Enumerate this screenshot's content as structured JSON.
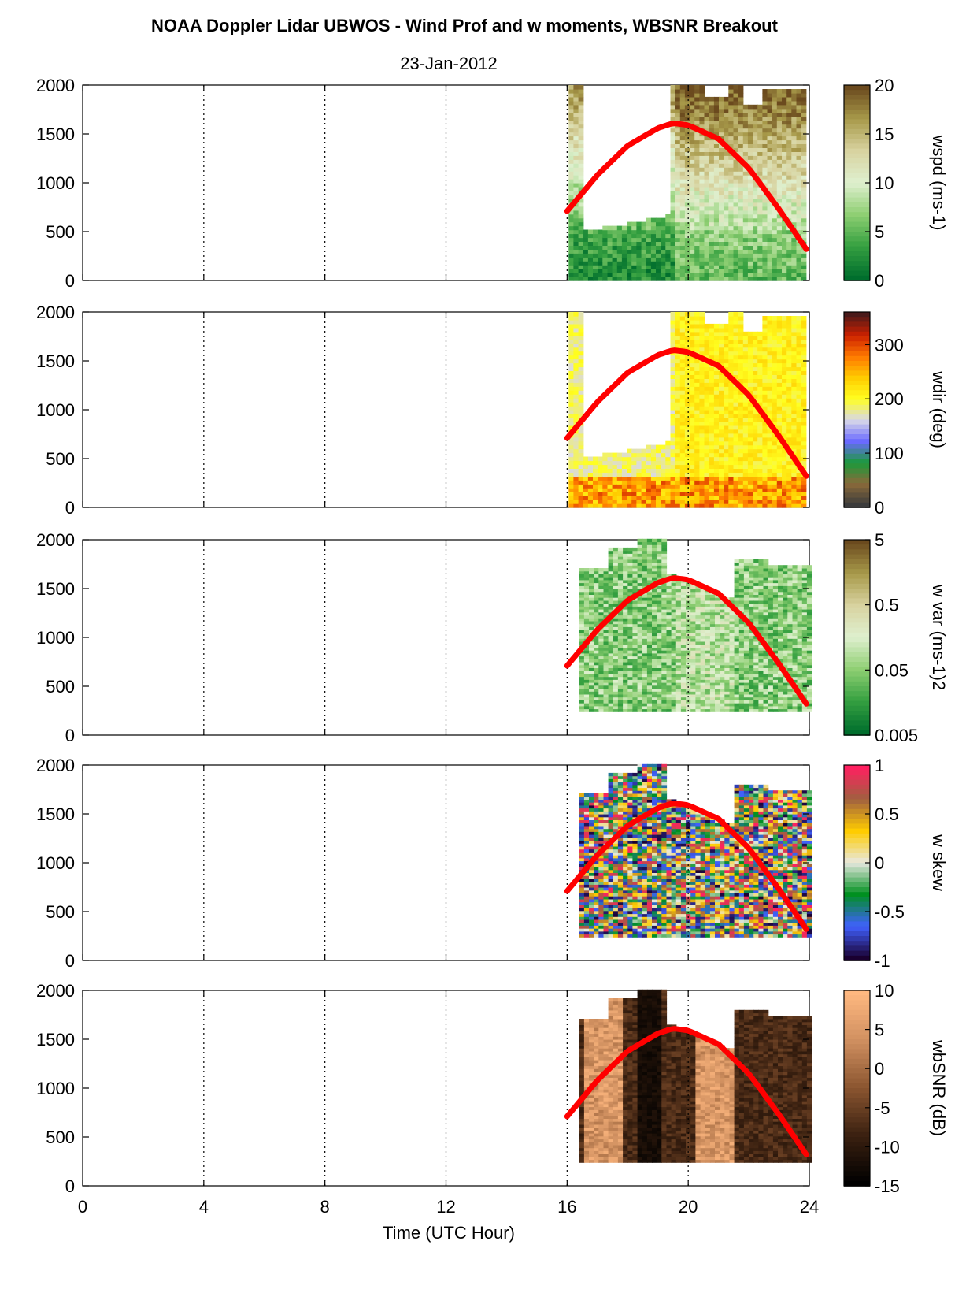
{
  "chart_data": {
    "type": "heatmap",
    "title": "NOAA Doppler Lidar UBWOS - Wind Prof and w moments, WBSNR Breakout",
    "subtitle": "23-Jan-2012",
    "xlabel": "Time (UTC Hour)",
    "xlim": [
      0,
      24
    ],
    "xticks": [
      0,
      4,
      8,
      12,
      16,
      20,
      24
    ],
    "x_gridlines": [
      4,
      8,
      12,
      16,
      20
    ],
    "ylim": [
      0,
      2000
    ],
    "yticks": [
      0,
      500,
      1000,
      1500,
      2000
    ],
    "data_extent_hours": [
      16,
      24
    ],
    "overlay_curve": {
      "color": "#ff0000",
      "x": [
        16,
        17,
        18,
        19,
        19.5,
        20,
        21,
        22,
        23,
        23.9
      ],
      "y": [
        710,
        1080,
        1380,
        1560,
        1610,
        1590,
        1450,
        1150,
        730,
        320
      ]
    },
    "panels": [
      {
        "name": "wspd",
        "colorbar_label": "wspd (ms-1)",
        "colorbar_ticks": [
          "20",
          "15",
          "10",
          "5",
          "0"
        ],
        "colorbar_range": [
          0,
          20
        ],
        "colormap": [
          "#006e2d",
          "#35a040",
          "#8fcf73",
          "#dff0cf",
          "#d8d3a0",
          "#a89a4a",
          "#6b4a1e"
        ]
      },
      {
        "name": "wdir",
        "colorbar_label": "wdir (deg)",
        "colorbar_ticks": [
          "300",
          "200",
          "100",
          "0"
        ],
        "colorbar_range": [
          0,
          360
        ],
        "colormap": [
          "#3c3c3c",
          "#8a6a3a",
          "#1a9a3a",
          "#6a6aff",
          "#d8d8e8",
          "#ffff20",
          "#ffcc00",
          "#ff7a00",
          "#cc2000",
          "#4a1a1a"
        ]
      },
      {
        "name": "w var",
        "colorbar_label": "w var (ms-1)2",
        "colorbar_ticks": [
          "5",
          "0.5",
          "0.05",
          "0.005"
        ],
        "colorbar_range": [
          0.005,
          5
        ],
        "colormap": [
          "#006e2d",
          "#35a040",
          "#8fcf73",
          "#dff0cf",
          "#d8d3a0",
          "#a89a4a",
          "#6b4a1e"
        ]
      },
      {
        "name": "w skew",
        "colorbar_label": "w skew",
        "colorbar_ticks": [
          "1",
          "0.5",
          "0",
          "-0.5",
          "-1"
        ],
        "colorbar_range": [
          -1,
          1
        ],
        "colormap": [
          "#1a0030",
          "#4060ff",
          "#009020",
          "#e8e8e0",
          "#ffcc00",
          "#a06040",
          "#ff2060"
        ]
      },
      {
        "name": "wbSNR",
        "colorbar_label": "wbSNR (dB)",
        "colorbar_ticks": [
          "10",
          "5",
          "0",
          "-5",
          "-10",
          "-15"
        ],
        "colorbar_range": [
          -15,
          10
        ],
        "colormap": [
          "#000000",
          "#3a2010",
          "#8a5530",
          "#d09060",
          "#ffb880"
        ]
      }
    ]
  }
}
